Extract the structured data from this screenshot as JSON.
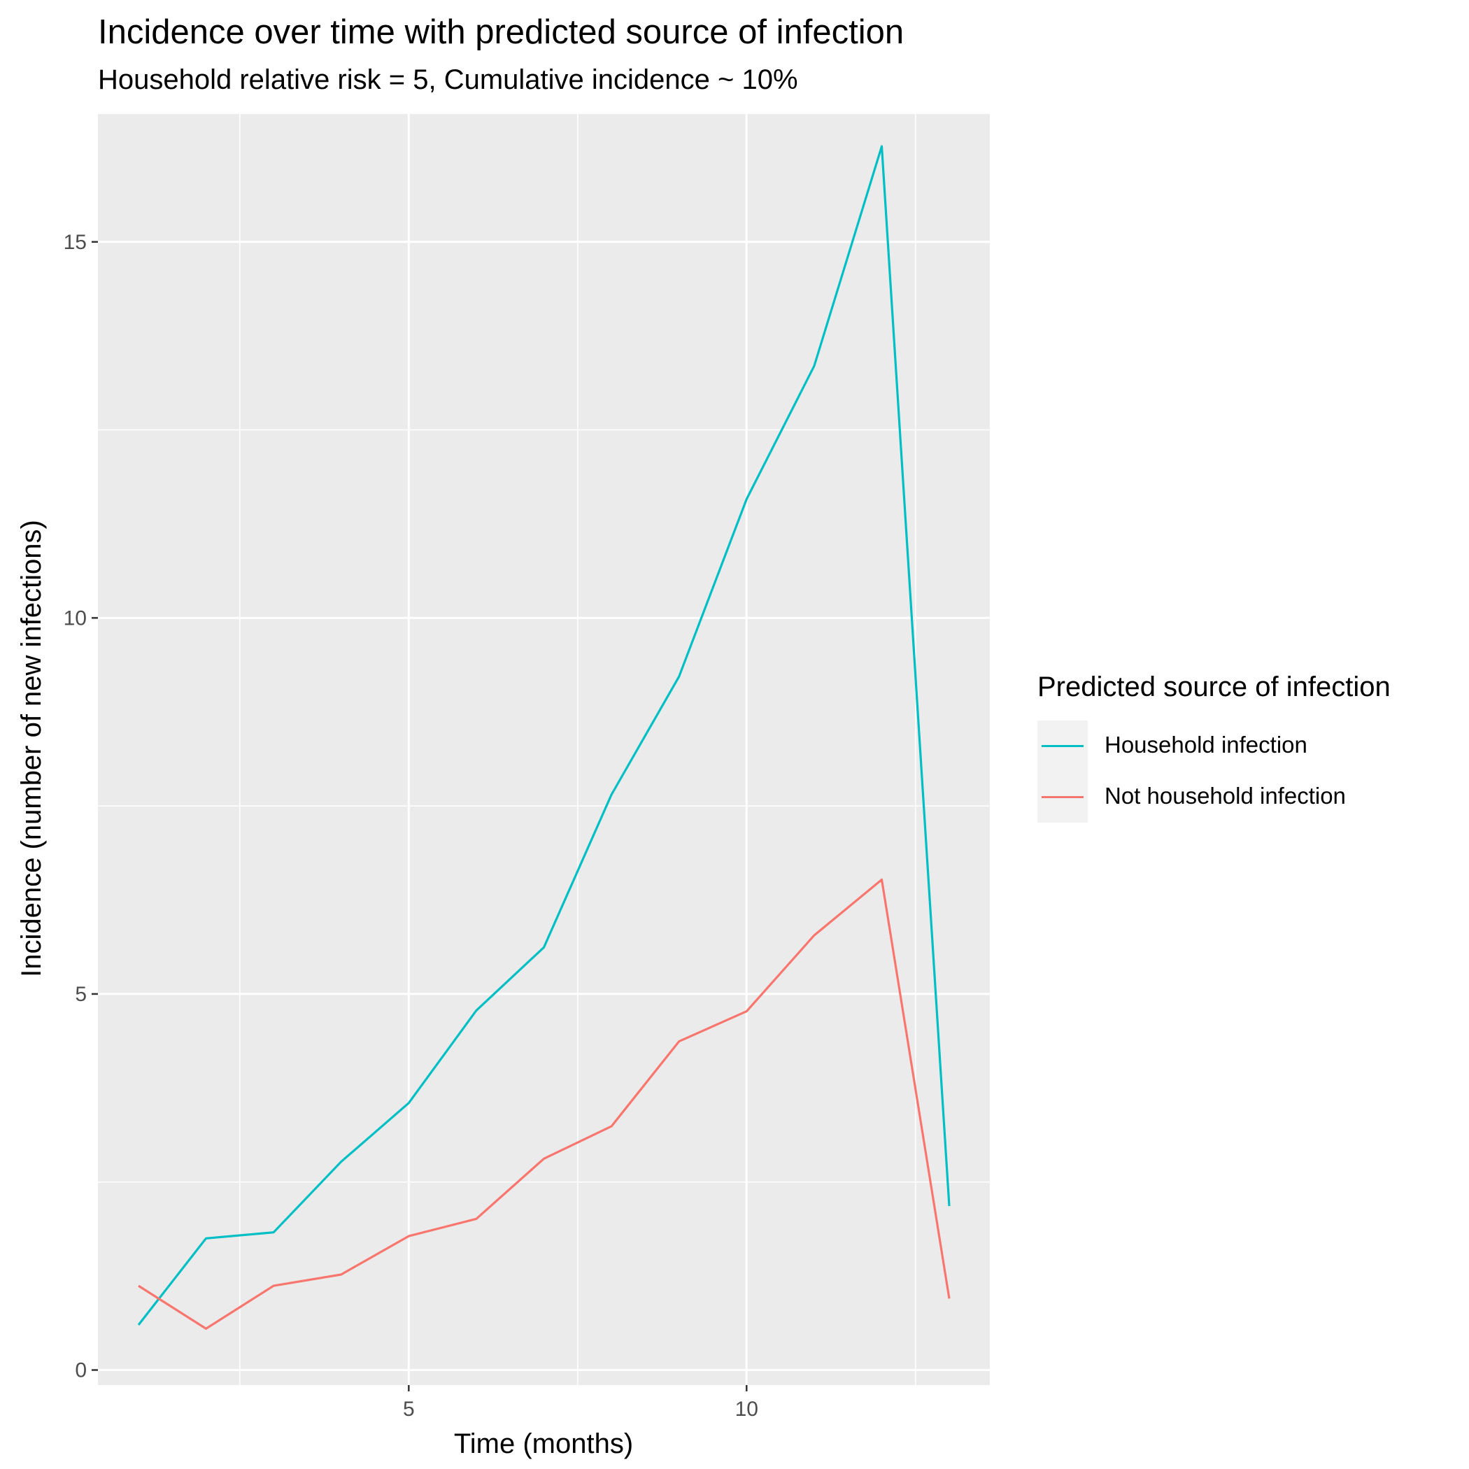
{
  "chart_data": {
    "type": "line",
    "title": "Incidence over time with predicted source of infection",
    "subtitle": "Household relative risk = 5, Cumulative incidence ~ 10%",
    "xlabel": "Time (months)",
    "ylabel": "Incidence (number of new infections)",
    "xlim": [
      0.4,
      13.6
    ],
    "ylim": [
      -0.2,
      16.7
    ],
    "xticks": [
      5,
      10
    ],
    "yticks": [
      0,
      5,
      10,
      15
    ],
    "grid": true,
    "legend_title": "Predicted source of infection",
    "legend_position": "right",
    "x": [
      1,
      2,
      3,
      4,
      5,
      6,
      7,
      8,
      9,
      10,
      11,
      12,
      13
    ],
    "series": [
      {
        "name": "Household infection",
        "color": "#00BFC4",
        "values": [
          0.6,
          1.75,
          1.83,
          2.77,
          3.55,
          4.78,
          5.62,
          7.65,
          9.22,
          11.58,
          13.35,
          16.27,
          2.18
        ]
      },
      {
        "name": "Not household infection",
        "color": "#F8766D",
        "values": [
          1.12,
          0.55,
          1.12,
          1.27,
          1.78,
          2.01,
          2.81,
          3.24,
          4.37,
          4.77,
          5.78,
          6.52,
          0.95
        ]
      }
    ]
  }
}
